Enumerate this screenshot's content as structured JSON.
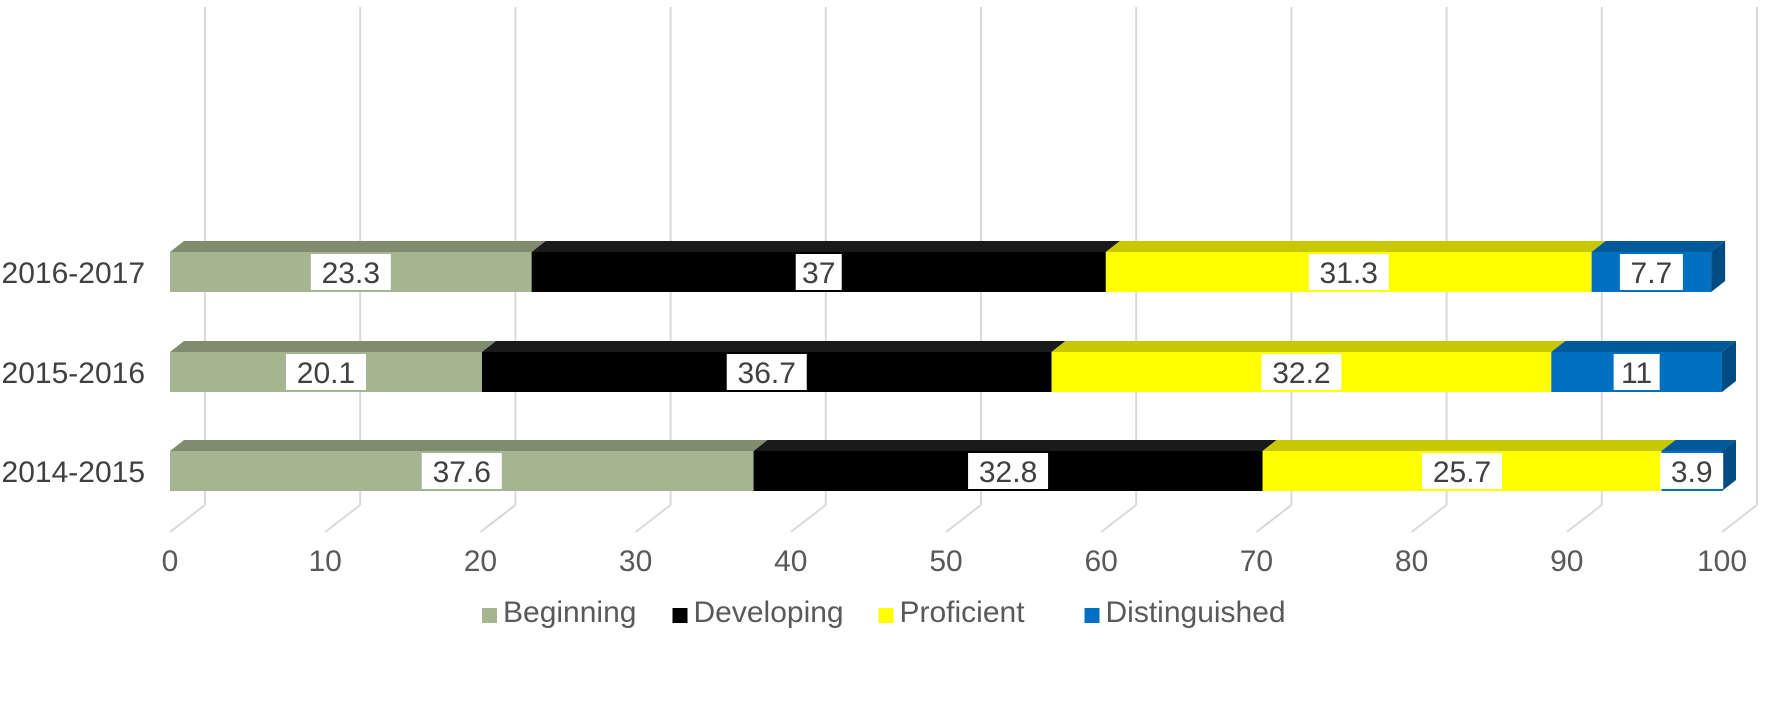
{
  "chart_data": {
    "type": "bar",
    "orientation": "horizontal",
    "stacked": true,
    "style": "3d",
    "categories": [
      "2014-2015",
      "2015-2016",
      "2016-2017"
    ],
    "series": [
      {
        "name": "Beginning",
        "values": [
          37.6,
          20.1,
          23.3
        ],
        "color": "#A5B592",
        "top_color": "#7F8C6E",
        "side_color": "#7F8C6E"
      },
      {
        "name": "Developing",
        "values": [
          32.8,
          36.7,
          37
        ],
        "color": "#000000",
        "top_color": "#1A1A1A",
        "side_color": "#1A1A1A"
      },
      {
        "name": "Proficient",
        "values": [
          25.7,
          32.2,
          31.3
        ],
        "color": "#FFFF00",
        "top_color": "#C8C800",
        "side_color": "#C8C800"
      },
      {
        "name": "Distinguished",
        "values": [
          3.9,
          11,
          7.7
        ],
        "color": "#0070C0",
        "top_color": "#005A9A",
        "side_color": "#004C82"
      }
    ],
    "xlim": [
      0,
      100
    ],
    "xticks": [
      "0",
      "10",
      "20",
      "30",
      "40",
      "50",
      "60",
      "70",
      "80",
      "90",
      "100"
    ],
    "grid": true,
    "legend_position": "bottom",
    "gridline_color": "#D9D9D9"
  }
}
